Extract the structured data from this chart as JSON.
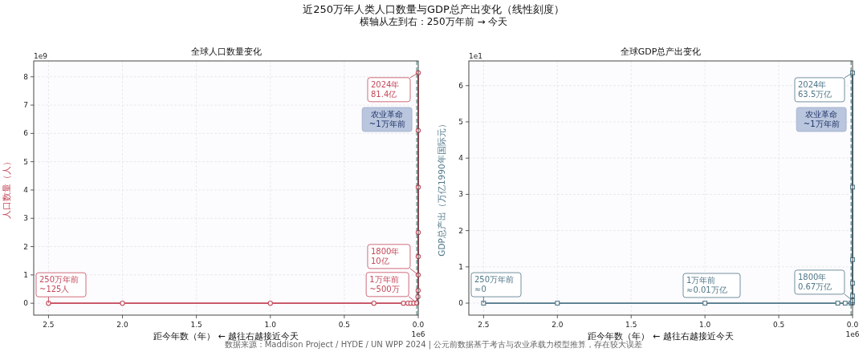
{
  "chart_data": [
    {
      "type": "line",
      "title": "全球人口数量变化",
      "xlabel": "距今年数（年） ← 越往右越接近今天",
      "ylabel": "人口数量（人）",
      "xlim": [
        2.6,
        0
      ],
      "ylim": [
        -0.42,
        8.56
      ],
      "xticks": [
        {
          "value": 2.5,
          "label": "2.5"
        },
        {
          "value": 2,
          "label": "2.0"
        },
        {
          "value": 1.5,
          "label": "1.5"
        },
        {
          "value": 1,
          "label": "1.0"
        },
        {
          "value": 0.5,
          "label": "0.5"
        },
        {
          "value": 0,
          "label": "0.0"
        }
      ],
      "yticks": [
        0,
        1,
        2,
        3,
        4,
        5,
        6,
        7,
        8
      ],
      "grid": true,
      "series": [
        {
          "color": "#c4485a",
          "marker": "circle",
          "x": [
            2.5,
            2.0,
            1.0,
            0.3,
            0.1,
            0.07,
            0.05,
            0.03,
            0.01,
            0.002023,
            0.000524,
            0.000224,
            0.000124,
            7.4e-05,
            4.9e-05,
            2.4e-05,
            0
          ],
          "values": [
            0,
            0,
            0,
            0,
            0,
            0,
            0,
            0,
            0.01,
            0.23,
            0.45,
            1.0,
            1.65,
            2.5,
            4.1,
            6.1,
            8.14
          ]
        }
      ],
      "ref_lines": [
        {
          "axis": "x",
          "value": 0.01,
          "label": "农业革命\n~1万年前",
          "color": "#6f9f9a",
          "line_style": "dashed"
        }
      ],
      "annotations": [
        "近250万年人类人口数量与GDP总产出变化（线性刻度）",
        "横轴从左到右：250万年前 → 今天",
        "1e9",
        "1e6",
        {
          "text": "250万年前\n~125人",
          "x": 2.5,
          "y": 0
        },
        {
          "text": "1万年前\n~500万",
          "x": 0.01,
          "y": 0.01
        },
        {
          "text": "1800年\n10亿",
          "x": 0.000224,
          "y": 1.0
        },
        {
          "text": "2024年\n81.4亿",
          "x": 0,
          "y": 8.14
        }
      ]
    },
    {
      "type": "line",
      "title": "全球GDP总产出变化",
      "xlabel": "距今年数（年） ← 越往右越接近今天",
      "ylabel": "GDP总产出（万亿1990年国际元）",
      "xlim": [
        2.6,
        0
      ],
      "ylim": [
        -0.33,
        6.68
      ],
      "xticks": [
        {
          "value": 2.5,
          "label": "2.5"
        },
        {
          "value": 2,
          "label": "2.0"
        },
        {
          "value": 1.5,
          "label": "1.5"
        },
        {
          "value": 1,
          "label": "1.0"
        },
        {
          "value": 0.5,
          "label": "0.5"
        },
        {
          "value": 0,
          "label": "0.0"
        }
      ],
      "yticks": [
        0,
        1,
        2,
        3,
        4,
        5,
        6
      ],
      "grid": true,
      "series": [
        {
          "color": "#4f7688",
          "marker": "square",
          "x": [
            2.5,
            2.0,
            1.0,
            0.1,
            0.05,
            0.01,
            0.002023,
            0.000524,
            0.000224,
            0.000124,
            7.4e-05,
            4.9e-05,
            2.4e-05,
            0
          ],
          "values": [
            0,
            0,
            0,
            0,
            0,
            0,
            0.01,
            0.03,
            0.07,
            0.2,
            0.55,
            1.2,
            3.2,
            6.35
          ]
        }
      ],
      "ref_lines": [
        {
          "axis": "x",
          "value": 0.01,
          "label": "农业革命\n~1万年前",
          "color": "#6f9f9a",
          "line_style": "dashed"
        }
      ],
      "annotations": [
        "1e1",
        "1e6",
        "数据来源：Maddison Project / HYDE / UN WPP 2024 | 公元前数据基于考古与农业承载力模型推算，存在较大误差",
        "1万年前\n≈0.01万亿",
        {
          "text": "250万年前\n≈0",
          "x": 2.5,
          "y": 0
        },
        {
          "text": "1800年\n0.67万亿",
          "x": 0.000224,
          "y": 0.07
        },
        {
          "text": "2024年\n63.5万亿",
          "x": 0,
          "y": 6.35
        }
      ]
    }
  ]
}
